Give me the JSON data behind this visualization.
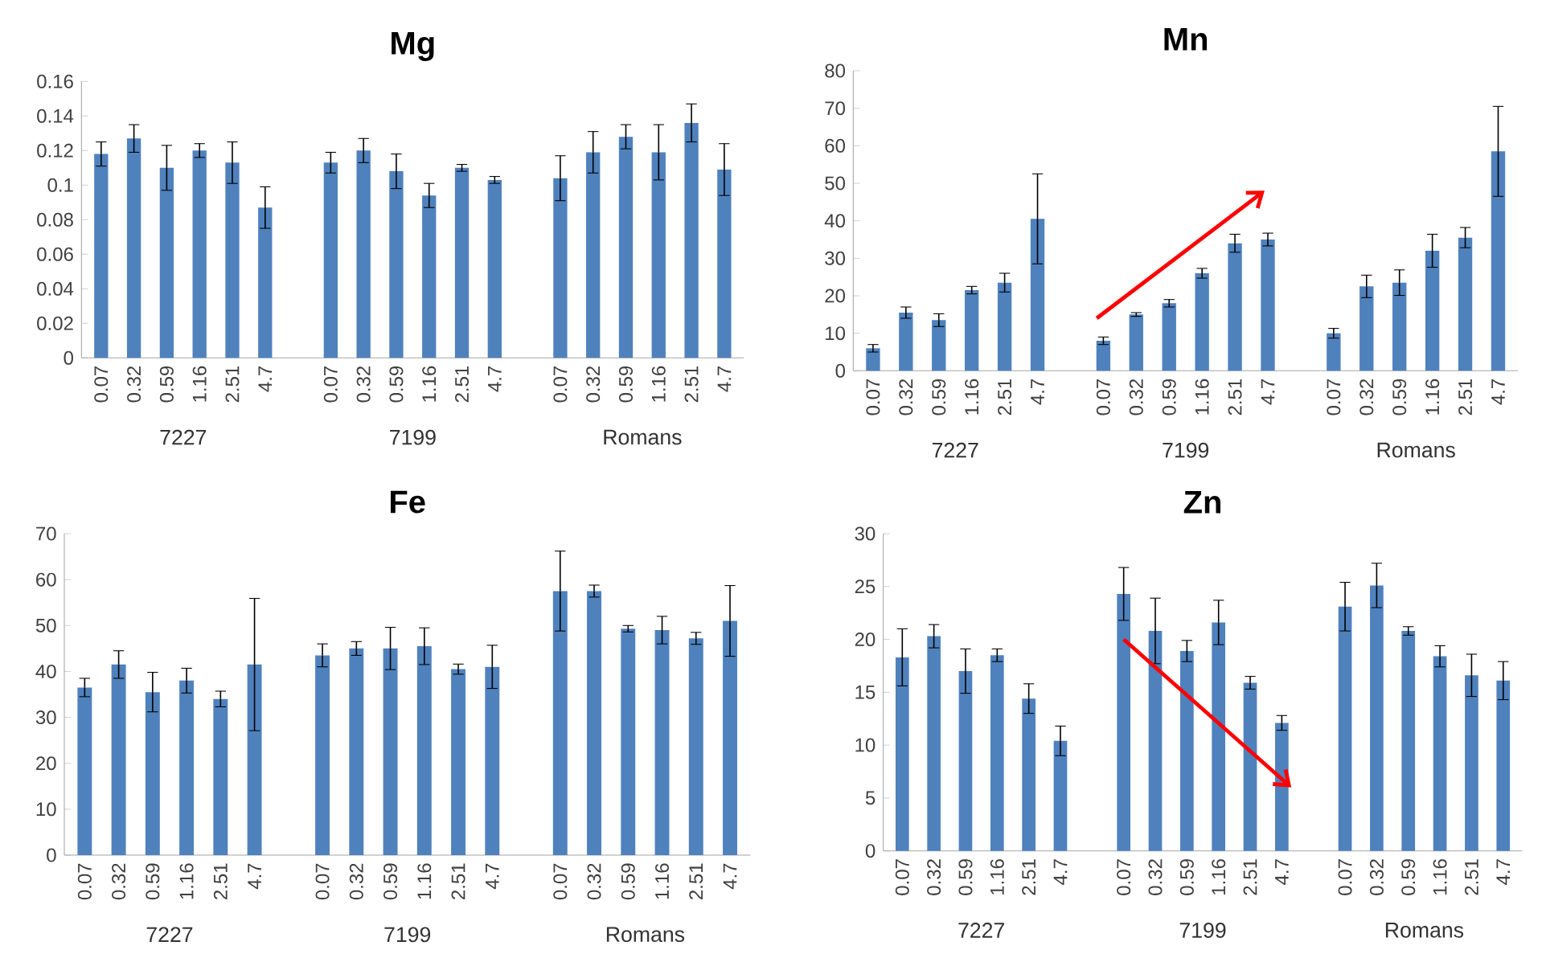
{
  "chart_data": [
    {
      "type": "bar",
      "title": "Mg",
      "color": "#4f81bd",
      "categories": [
        "0.07",
        "0.32",
        "0.59",
        "1.16",
        "2.51",
        "4.7",
        null,
        "0.07",
        "0.32",
        "0.59",
        "1.16",
        "2.51",
        "4.7",
        null,
        "0.07",
        "0.32",
        "0.59",
        "1.16",
        "2.51",
        "4.7"
      ],
      "values": [
        0.118,
        0.127,
        0.11,
        0.12,
        0.113,
        0.087,
        null,
        0.113,
        0.12,
        0.108,
        0.094,
        0.11,
        0.103,
        null,
        0.104,
        0.119,
        0.128,
        0.119,
        0.136,
        0.109
      ],
      "errors": [
        0.007,
        0.008,
        0.013,
        0.004,
        0.012,
        0.012,
        null,
        0.006,
        0.007,
        0.01,
        0.007,
        0.002,
        0.002,
        null,
        0.013,
        0.012,
        0.007,
        0.016,
        0.011,
        0.015
      ],
      "ylim": [
        0,
        0.16
      ],
      "yticks": [
        0,
        0.02,
        0.04,
        0.06,
        0.08,
        0.1,
        0.12,
        0.14,
        0.16
      ],
      "annotations": [
        "7227",
        "7199",
        "Romans"
      ]
    },
    {
      "type": "bar",
      "title": "Mn",
      "color": "#4f81bd",
      "categories": [
        "0.07",
        "0.32",
        "0.59",
        "1.16",
        "2.51",
        "4.7",
        null,
        "0.07",
        "0.32",
        "0.59",
        "1.16",
        "2.51",
        "4.7",
        null,
        "0.07",
        "0.32",
        "0.59",
        "1.16",
        "2.51",
        "4.7"
      ],
      "values": [
        6,
        15.5,
        13.5,
        21.5,
        23.5,
        40.5,
        null,
        8,
        15,
        18,
        26,
        34,
        35,
        null,
        10,
        22.5,
        23.5,
        32,
        35.5,
        58.5
      ],
      "errors": [
        1,
        1.5,
        1.7,
        1,
        2.5,
        12,
        null,
        1,
        0.5,
        1,
        1.3,
        2.4,
        1.7,
        null,
        1.3,
        3,
        3.4,
        4.4,
        2.7,
        12
      ],
      "ylim": [
        0,
        80
      ],
      "yticks": [
        0,
        10,
        20,
        30,
        40,
        50,
        60,
        70,
        80
      ],
      "annotations": [
        "7227",
        "7199",
        "Romans"
      ]
    },
    {
      "type": "bar",
      "title": "Fe",
      "color": "#4f81bd",
      "categories": [
        "0.07",
        "0.32",
        "0.59",
        "1.16",
        "2.51",
        "4.7",
        null,
        "0.07",
        "0.32",
        "0.59",
        "1.16",
        "2.51",
        "4.7",
        null,
        "0.07",
        "0.32",
        "0.59",
        "1.16",
        "2.51",
        "4.7"
      ],
      "values": [
        36.5,
        41.5,
        35.5,
        38,
        34,
        41.5,
        null,
        43.5,
        45,
        45,
        45.5,
        40.5,
        41,
        null,
        57.5,
        57.5,
        49.3,
        49,
        47.2,
        51
      ],
      "errors": [
        2,
        3,
        4.3,
        2.7,
        1.7,
        14.4,
        null,
        2.5,
        1.5,
        4.6,
        4,
        1.1,
        4.7,
        null,
        8.7,
        1.3,
        0.7,
        3,
        1.3,
        7.7
      ],
      "ylim": [
        0,
        70
      ],
      "yticks": [
        0,
        10,
        20,
        30,
        40,
        50,
        60,
        70
      ],
      "annotations": [
        "7227",
        "7199",
        "Romans"
      ]
    },
    {
      "type": "bar",
      "title": "Zn",
      "color": "#4f81bd",
      "categories": [
        "0.07",
        "0.32",
        "0.59",
        "1.16",
        "2.51",
        "4.7",
        null,
        "0.07",
        "0.32",
        "0.59",
        "1.16",
        "2.51",
        "4.7",
        null,
        "0.07",
        "0.32",
        "0.59",
        "1.16",
        "2.51",
        "4.7"
      ],
      "values": [
        18.3,
        20.3,
        17,
        18.5,
        14.4,
        10.4,
        null,
        24.3,
        20.8,
        18.9,
        21.6,
        15.9,
        12.1,
        null,
        23.1,
        25.1,
        20.8,
        18.4,
        16.6,
        16.1
      ],
      "errors": [
        2.7,
        1.1,
        2.1,
        0.6,
        1.4,
        1.4,
        null,
        2.5,
        3.1,
        1,
        2.1,
        0.6,
        0.7,
        null,
        2.3,
        2.1,
        0.4,
        1,
        2,
        1.8
      ],
      "ylim": [
        0,
        30
      ],
      "yticks": [
        0,
        5,
        10,
        15,
        20,
        25,
        30
      ],
      "annotations": [
        "7227",
        "7199",
        "Romans"
      ]
    }
  ]
}
